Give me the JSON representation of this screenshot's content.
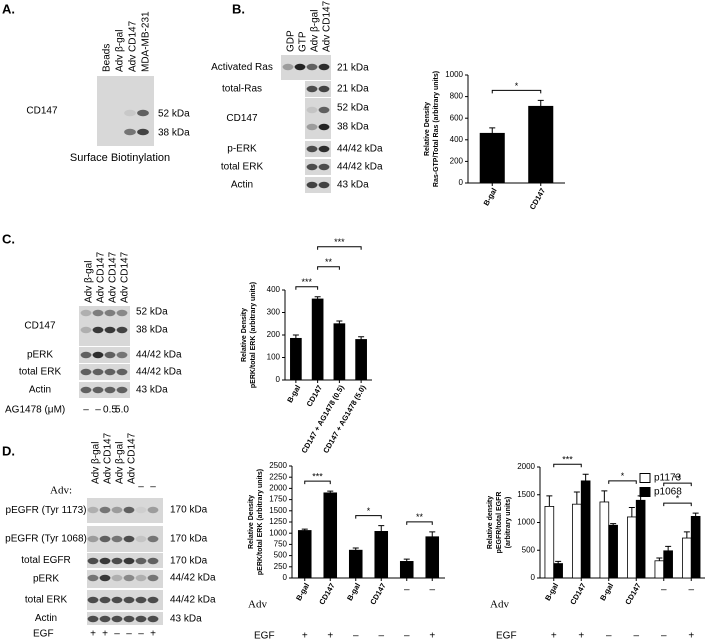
{
  "panels": [
    {
      "label": "A.",
      "lanes": [
        "Beads",
        "Adv β-gal",
        "Adv CD147",
        "MDA-MB-231"
      ],
      "rows": [
        {
          "name": "CD147",
          "sizes": [
            "52 kDa",
            "38 kDa"
          ]
        }
      ],
      "caption": "Surface Biotinylation"
    },
    {
      "label": "B.",
      "lanes": [
        "GDP",
        "GTP",
        "Adv β-gal",
        "Adv CD147"
      ],
      "rows": [
        {
          "name": "Activated Ras",
          "sizes": [
            "21 kDa"
          ]
        },
        {
          "name": "total-Ras",
          "sizes": [
            "21 kDa"
          ]
        },
        {
          "name": "CD147",
          "sizes": [
            "52 kDa",
            "38 kDa"
          ]
        },
        {
          "name": "p-ERK",
          "sizes": [
            "44/42 kDa"
          ]
        },
        {
          "name": "total ERK",
          "sizes": [
            "44/42 kDa"
          ]
        },
        {
          "name": "Actin",
          "sizes": [
            "43 kDa"
          ]
        }
      ]
    },
    {
      "label": "C.",
      "lanes": [
        "Adv β-gal",
        "Adv CD147",
        "Adv CD147",
        "Adv CD147"
      ],
      "rows": [
        {
          "name": "CD147",
          "sizes": [
            "52 kDa",
            "38 kDa"
          ]
        },
        {
          "name": "pERK",
          "sizes": [
            "44/42 kDa"
          ]
        },
        {
          "name": "total ERK",
          "sizes": [
            "44/42 kDa"
          ]
        },
        {
          "name": "Actin",
          "sizes": [
            "43 kDa"
          ]
        }
      ],
      "treatment": {
        "name": "AG1478 (μM)",
        "values": [
          "–",
          "–",
          "0.5",
          "5.0"
        ]
      }
    },
    {
      "label": "D.",
      "lanes_title": "Adv:",
      "lanes": [
        "Adv β-gal",
        "Adv CD147",
        "Adv β-gal",
        "Adv CD147",
        "–",
        "–"
      ],
      "rows": [
        {
          "name": "pEGFR (Tyr 1173)",
          "sizes": [
            "170 kDa"
          ]
        },
        {
          "name": "pEGFR (Tyr 1068)",
          "sizes": [
            "170 kDa"
          ]
        },
        {
          "name": "total EGFR",
          "sizes": [
            "170 kDa"
          ]
        },
        {
          "name": "pERK",
          "sizes": [
            "44/42 kDa"
          ]
        },
        {
          "name": "total ERK",
          "sizes": [
            "44/42 kDa"
          ]
        },
        {
          "name": "Actin",
          "sizes": [
            "43 kDa"
          ]
        }
      ],
      "treatment": {
        "name": "EGF",
        "values": [
          "+",
          "+",
          "–",
          "–",
          "–",
          "+"
        ]
      }
    }
  ],
  "chart_data": [
    {
      "type": "bar",
      "ylabel": [
        "Relative Density",
        "Ras-GTP/Total Ras (arbitrary units)"
      ],
      "categories": [
        "B-gal",
        "CD147"
      ],
      "values": [
        460,
        710
      ],
      "errors": [
        50,
        55
      ],
      "color": "#000000",
      "ylim": [
        0,
        1000
      ],
      "yticks": [
        0,
        200,
        400,
        600,
        800,
        1000
      ],
      "annotations": [
        {
          "text": "*",
          "from": 0,
          "to": 1
        }
      ]
    },
    {
      "type": "bar",
      "ylabel": [
        "Relative Density",
        "pERK/total ERK (arbitrary units)"
      ],
      "categories": [
        "B-gal",
        "CD147",
        "CD147 + AG1478 (0.5)",
        "CD147 + AG1478 (5.0)"
      ],
      "values": [
        185,
        360,
        250,
        180
      ],
      "errors": [
        15,
        10,
        12,
        12
      ],
      "color": "#000000",
      "ylim": [
        0,
        400
      ],
      "yticks": [
        0,
        100,
        200,
        300,
        400
      ],
      "annotations": [
        {
          "text": "***",
          "from": 0,
          "to": 1
        },
        {
          "text": "**",
          "from": 1,
          "to": 2
        },
        {
          "text": "***",
          "from": 1,
          "to": 3
        }
      ]
    },
    {
      "type": "bar",
      "ylabel": [
        "Relative Density",
        "pERK/total ERK (arbitrary units)"
      ],
      "categories": [
        "B-gal",
        "CD147",
        "B-gal",
        "CD147",
        "–",
        "–"
      ],
      "values": [
        1060,
        1900,
        620,
        1040,
        370,
        920
      ],
      "errors": [
        30,
        40,
        50,
        130,
        50,
        110
      ],
      "color": "#000000",
      "ylim": [
        0,
        2500
      ],
      "yticks": [
        0,
        250,
        500,
        750,
        1000,
        1250,
        1500,
        1750,
        2000,
        2250,
        2500
      ],
      "group_label": "Adv",
      "treatment": {
        "name": "EGF",
        "values": [
          "+",
          "+",
          "–",
          "–",
          "–",
          "+"
        ]
      },
      "annotations": [
        {
          "text": "***",
          "from": 0,
          "to": 1
        },
        {
          "text": "*",
          "from": 2,
          "to": 3
        },
        {
          "text": "**",
          "from": 4,
          "to": 5
        }
      ]
    },
    {
      "type": "bar",
      "ylabel": [
        "Relative density",
        "pEGFR/total EGFR",
        "(arbitrary units)"
      ],
      "categories": [
        "B-gal",
        "CD147",
        "B-gal",
        "CD147",
        "–",
        "–"
      ],
      "series": [
        {
          "name": "p1173",
          "color": "#ffffff",
          "values": [
            1290,
            1330,
            1370,
            1100,
            310,
            720
          ],
          "errors": [
            190,
            220,
            200,
            170,
            50,
            110
          ]
        },
        {
          "name": "p1068",
          "color": "#000000",
          "values": [
            260,
            1750,
            950,
            1400,
            490,
            1110
          ],
          "errors": [
            40,
            120,
            30,
            80,
            80,
            60
          ]
        }
      ],
      "ylim": [
        0,
        2000
      ],
      "yticks": [
        0,
        500,
        1000,
        1500,
        2000
      ],
      "legend": "upper right",
      "group_label": "Adv",
      "treatment": {
        "name": "EGF",
        "values": [
          "+",
          "+",
          "–",
          "–",
          "–",
          "+"
        ]
      },
      "annotations": [
        {
          "text": "***",
          "from": 0,
          "to": 1
        },
        {
          "text": "*",
          "from": 2,
          "to": 3
        },
        {
          "text": "*",
          "from": 4,
          "to": 5
        },
        {
          "text": "**",
          "from": 4,
          "to": 5
        }
      ]
    }
  ]
}
